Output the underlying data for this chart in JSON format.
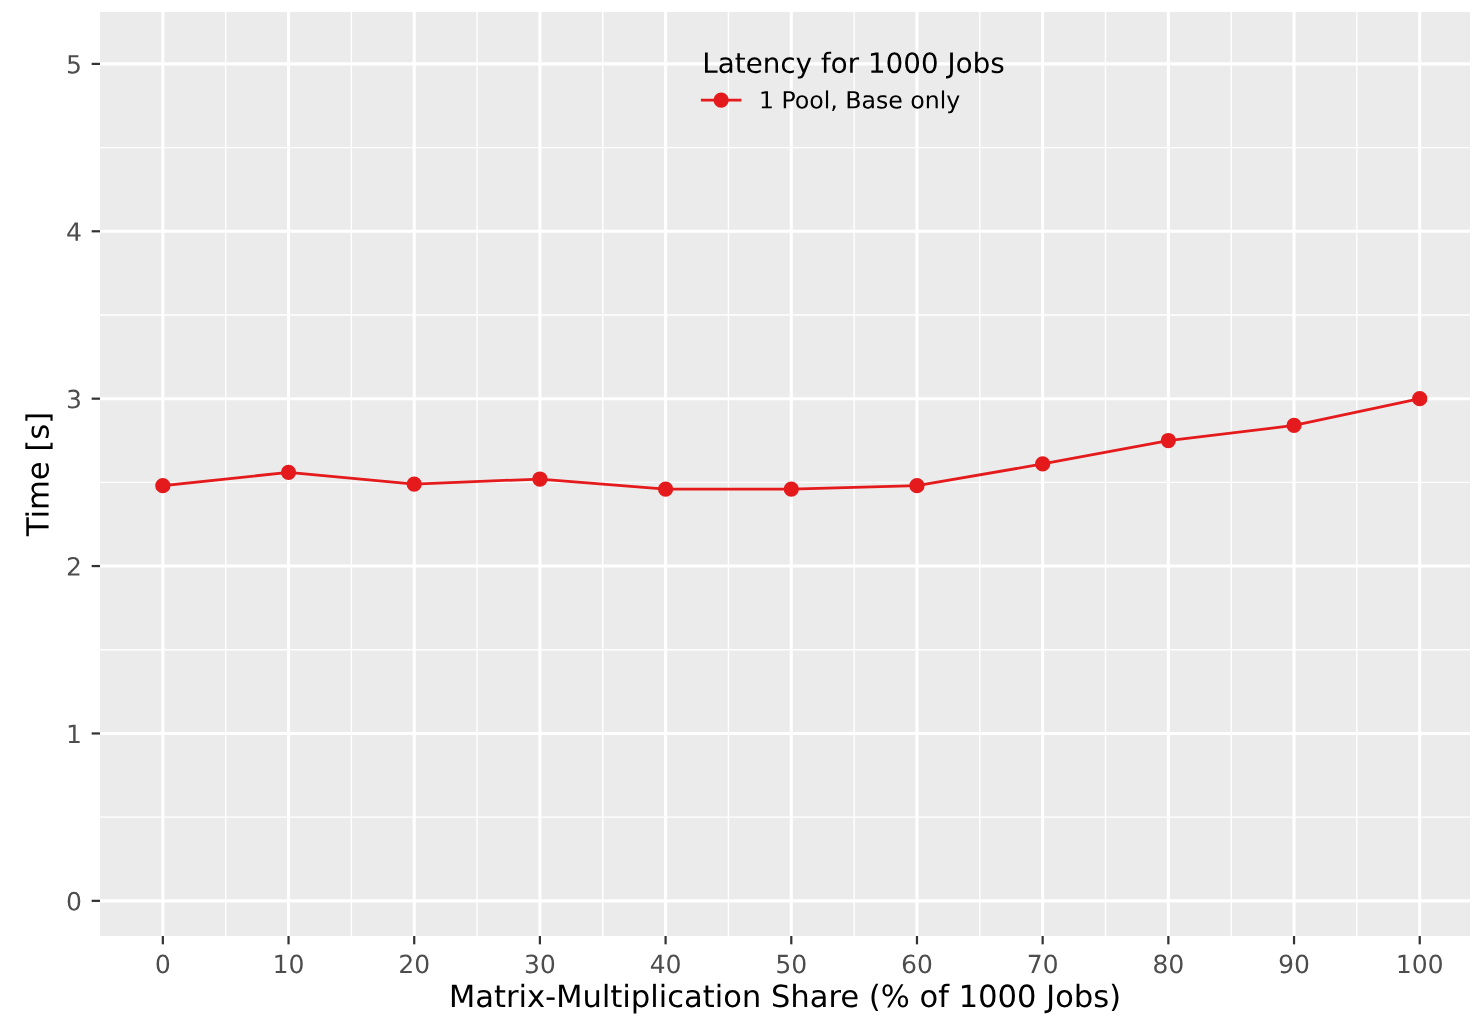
{
  "chart_data": {
    "type": "line",
    "xlabel": "Matrix-Multiplication Share (% of 1000 Jobs)",
    "ylabel": "Time [s]",
    "legend_title": "Latency for 1000 Jobs",
    "x": [
      0,
      10,
      20,
      30,
      40,
      50,
      60,
      70,
      80,
      90,
      100
    ],
    "series": [
      {
        "name": "1 Pool, Base only",
        "color": "#e41a1c",
        "values": [
          2.48,
          2.56,
          2.49,
          2.52,
          2.46,
          2.46,
          2.48,
          2.61,
          2.75,
          2.84,
          3.0
        ]
      }
    ],
    "xlim": [
      -5,
      104
    ],
    "ylim": [
      -0.21,
      5.31
    ],
    "xticks": [
      0,
      10,
      20,
      30,
      40,
      50,
      60,
      70,
      80,
      90,
      100
    ],
    "yticks": [
      0,
      1,
      2,
      3,
      4,
      5
    ],
    "grid": true,
    "legend": "top",
    "marker": "circle",
    "line_style": "solid"
  }
}
